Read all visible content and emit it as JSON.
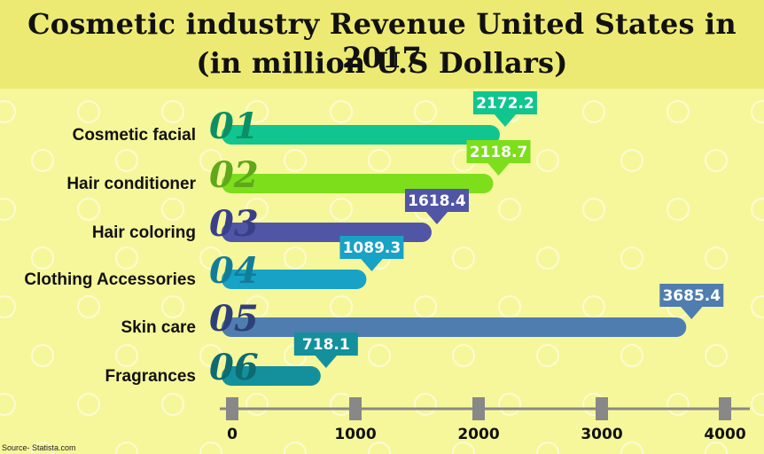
{
  "chart_data": {
    "type": "bar",
    "orientation": "horizontal",
    "title": "Cosmetic industry Revenue United States in 2017",
    "subtitle": "(in million U.S Dollars)",
    "categories": [
      "Cosmetic facial",
      "Hair conditioner",
      "Hair coloring",
      "Clothing Accessories",
      "Skin care",
      "Fragrances"
    ],
    "numbers": [
      "01",
      "02",
      "03",
      "04",
      "05",
      "06"
    ],
    "values": [
      2172.2,
      2118.7,
      1618.4,
      1089.3,
      3685.4,
      718.1
    ],
    "value_labels": [
      "2172.2",
      "2118.7",
      "1618.4",
      "1089.3",
      "3685.4",
      "718.1"
    ],
    "colors": [
      "#10c590",
      "#7dde1c",
      "#5155a6",
      "#17a2c6",
      "#4f7db0",
      "#13909c"
    ],
    "number_colors": [
      "#0c8f64",
      "#5fa81a",
      "#3a3f8a",
      "#117d99",
      "#2f3f78",
      "#0d6b72"
    ],
    "xlim": [
      0,
      4000
    ],
    "xticks": [
      0,
      1000,
      2000,
      3000,
      4000
    ],
    "xtick_labels": [
      "0",
      "1000",
      "2000",
      "3000",
      "4000"
    ],
    "axis_color": "#888888",
    "source": "Source- Statista.com"
  }
}
